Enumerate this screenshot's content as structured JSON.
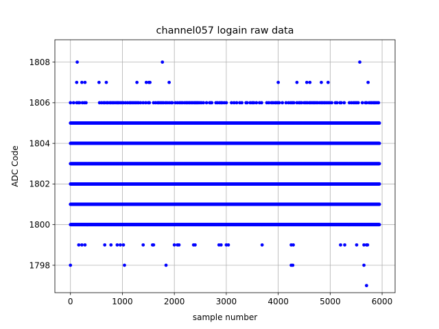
{
  "chart_data": {
    "type": "scatter",
    "title": "channel057 logain raw data",
    "xlabel": "sample number",
    "ylabel": "ADC Code",
    "xlim": [
      -300,
      6250
    ],
    "ylim": [
      1796.65,
      1809.1
    ],
    "xticks": [
      0,
      1000,
      2000,
      3000,
      4000,
      5000,
      6000
    ],
    "xtick_labels": [
      "0",
      "1000",
      "2000",
      "3000",
      "4000",
      "5000",
      "6000"
    ],
    "yticks": [
      1798,
      1800,
      1802,
      1804,
      1806,
      1808
    ],
    "ytick_labels": [
      "1798",
      "1800",
      "1802",
      "1804",
      "1806",
      "1808"
    ],
    "grid": true,
    "marker_color": "#0000ff",
    "n_samples": 6000,
    "dense_levels": [
      1800,
      1801,
      1802,
      1803,
      1804,
      1805
    ],
    "level_1806_x": [
      0,
      60,
      120,
      150,
      175,
      230,
      270,
      300,
      560,
      600,
      640,
      660,
      700,
      720,
      760,
      780,
      810,
      830,
      860,
      890,
      910,
      930,
      960,
      990,
      1020,
      1060,
      1100,
      1140,
      1160,
      1190,
      1220,
      1250,
      1280,
      1310,
      1350,
      1400,
      1450,
      1500,
      1520,
      1600,
      1640,
      1680,
      1700,
      1730,
      1760,
      1790,
      1830,
      1860,
      1900,
      1940,
      1960,
      2020,
      2060,
      2100,
      2130,
      2160,
      2200,
      2230,
      2250,
      2280,
      2300,
      2330,
      2350,
      2380,
      2400,
      2420,
      2440,
      2460,
      2490,
      2520,
      2560,
      2620,
      2680,
      2700,
      2720,
      2800,
      2830,
      2870,
      2900,
      2920,
      2960,
      3000,
      3100,
      3150,
      3200,
      3260,
      3300,
      3380,
      3400,
      3460,
      3500,
      3530,
      3580,
      3640,
      3680,
      3780,
      3820,
      3870,
      3900,
      3940,
      3960,
      3990,
      4020,
      4080,
      4150,
      4200,
      4240,
      4270,
      4300,
      4360,
      4400,
      4420,
      4450,
      4500,
      4530,
      4560,
      4600,
      4620,
      4650,
      4680,
      4700,
      4730,
      4760,
      4800,
      4830,
      4850,
      4880,
      4900,
      4930,
      4960,
      4990,
      5030,
      5100,
      5130,
      5190,
      5210,
      5270,
      5370,
      5410,
      5450,
      5480,
      5510,
      5540,
      5620,
      5680,
      5700,
      5750,
      5780,
      5800,
      5830,
      5850,
      5870,
      5900,
      5930
    ],
    "level_1807_x": [
      120,
      220,
      280,
      550,
      690,
      1280,
      1460,
      1510,
      1530,
      1900,
      4000,
      4360,
      4550,
      4610,
      4830,
      4960,
      5730
    ],
    "level_1808_x": [
      130,
      1770,
      5570
    ],
    "level_1799_x": [
      160,
      220,
      280,
      660,
      780,
      900,
      960,
      1020,
      1400,
      1580,
      1600,
      2000,
      2060,
      2090,
      2370,
      2400,
      2860,
      2900,
      3000,
      3040,
      3690,
      4250,
      4290,
      5200,
      5280,
      5510,
      5650,
      5700,
      5720
    ],
    "level_1798_x": [
      0,
      1040,
      1840,
      4250,
      4280,
      5650
    ],
    "level_1797_x": [
      5700
    ]
  }
}
